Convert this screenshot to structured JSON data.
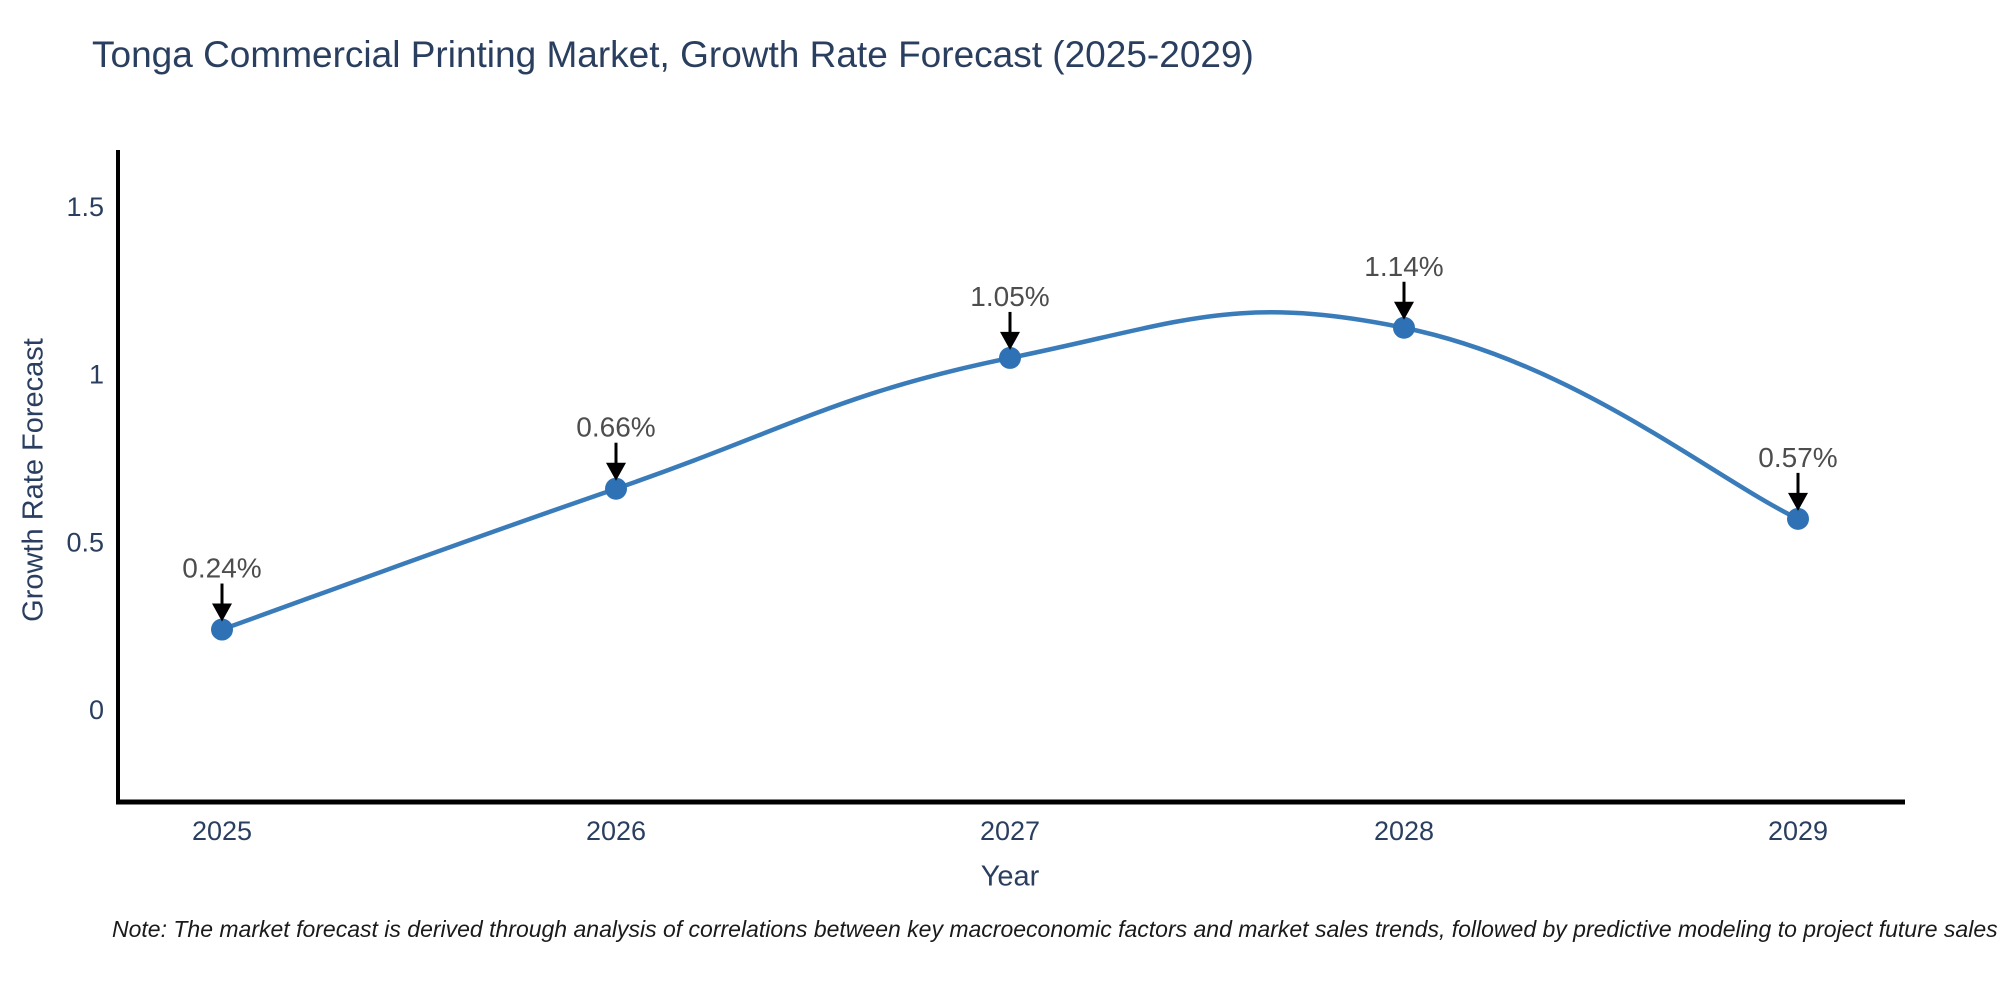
{
  "title": "Tonga Commercial Printing Market, Growth Rate Forecast (2025-2029)",
  "note": "Note: The market forecast is derived through analysis of correlations between key macroeconomic factors and market sales trends, followed by predictive modeling to project future sales",
  "chart_data": {
    "type": "line",
    "line_shape": "spline",
    "title": "Tonga Commercial Printing Market, Growth Rate Forecast (2025-2029)",
    "xlabel": "Year",
    "ylabel": "Growth Rate Forecast",
    "x": [
      2025,
      2026,
      2027,
      2028,
      2029
    ],
    "y": [
      0.24,
      0.66,
      1.05,
      1.14,
      0.57
    ],
    "point_labels": [
      "0.24%",
      "0.66%",
      "1.05%",
      "1.14%",
      "0.57%"
    ],
    "xticklabels": [
      "2025",
      "2026",
      "2027",
      "2028",
      "2029"
    ],
    "yticks": [
      0,
      0.5,
      1,
      1.5
    ],
    "yticklabels": [
      "0",
      "0.5",
      "1",
      "1.5"
    ],
    "ylim": [
      -0.27,
      1.67
    ],
    "grid": false,
    "legend": false,
    "colors": {
      "line": "#3a7cba",
      "marker": "#2e72b5",
      "axis": "#000000",
      "tick_label": "#2a3f5f",
      "annotation_text": "#4d4d4d",
      "annotation_arrow": "#000000"
    }
  }
}
